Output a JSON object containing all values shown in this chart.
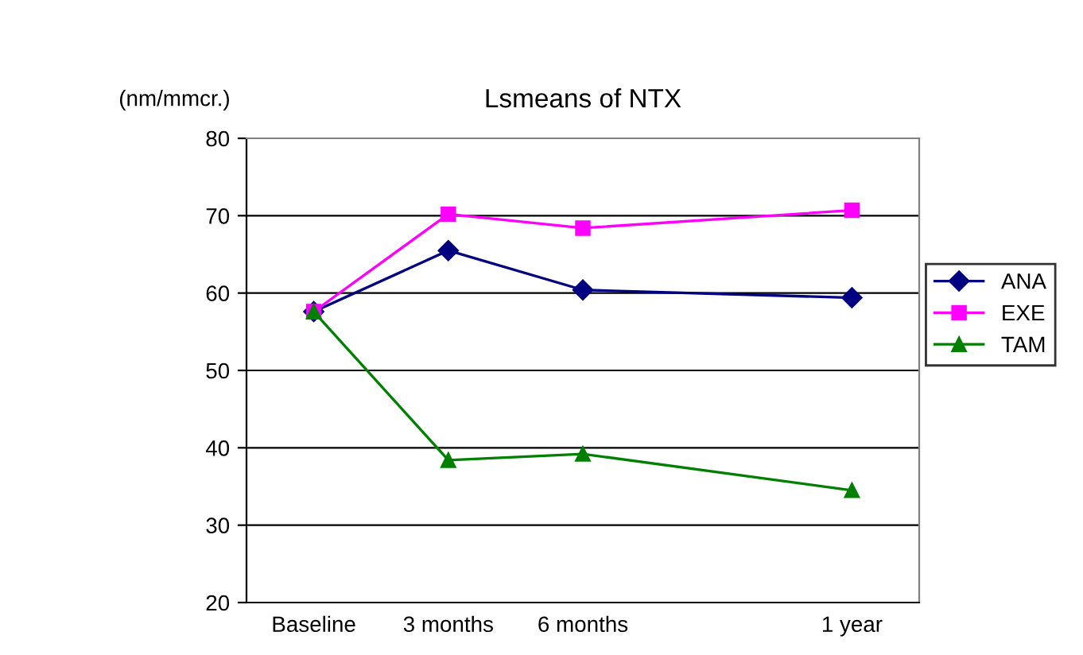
{
  "chart_data": {
    "type": "line",
    "title": "Lsmeans of NTX",
    "ylabel": "(nm/mmcr.)",
    "categories": [
      "Baseline",
      "3 months",
      "6 months",
      null,
      "1 year"
    ],
    "ylim": [
      20,
      80
    ],
    "yticks": [
      20,
      30,
      40,
      50,
      60,
      70,
      80
    ],
    "grid": "y",
    "legend": "right",
    "series": [
      {
        "name": "ANA",
        "color": "#000080",
        "marker": "diamond",
        "values": [
          57.6,
          65.5,
          60.4,
          null,
          59.4
        ]
      },
      {
        "name": "EXE",
        "color": "#ff00ff",
        "marker": "square",
        "values": [
          57.6,
          70.2,
          68.4,
          null,
          70.7
        ]
      },
      {
        "name": "TAM",
        "color": "#008000",
        "marker": "triangle",
        "values": [
          57.6,
          38.4,
          39.2,
          null,
          34.5
        ]
      }
    ]
  }
}
